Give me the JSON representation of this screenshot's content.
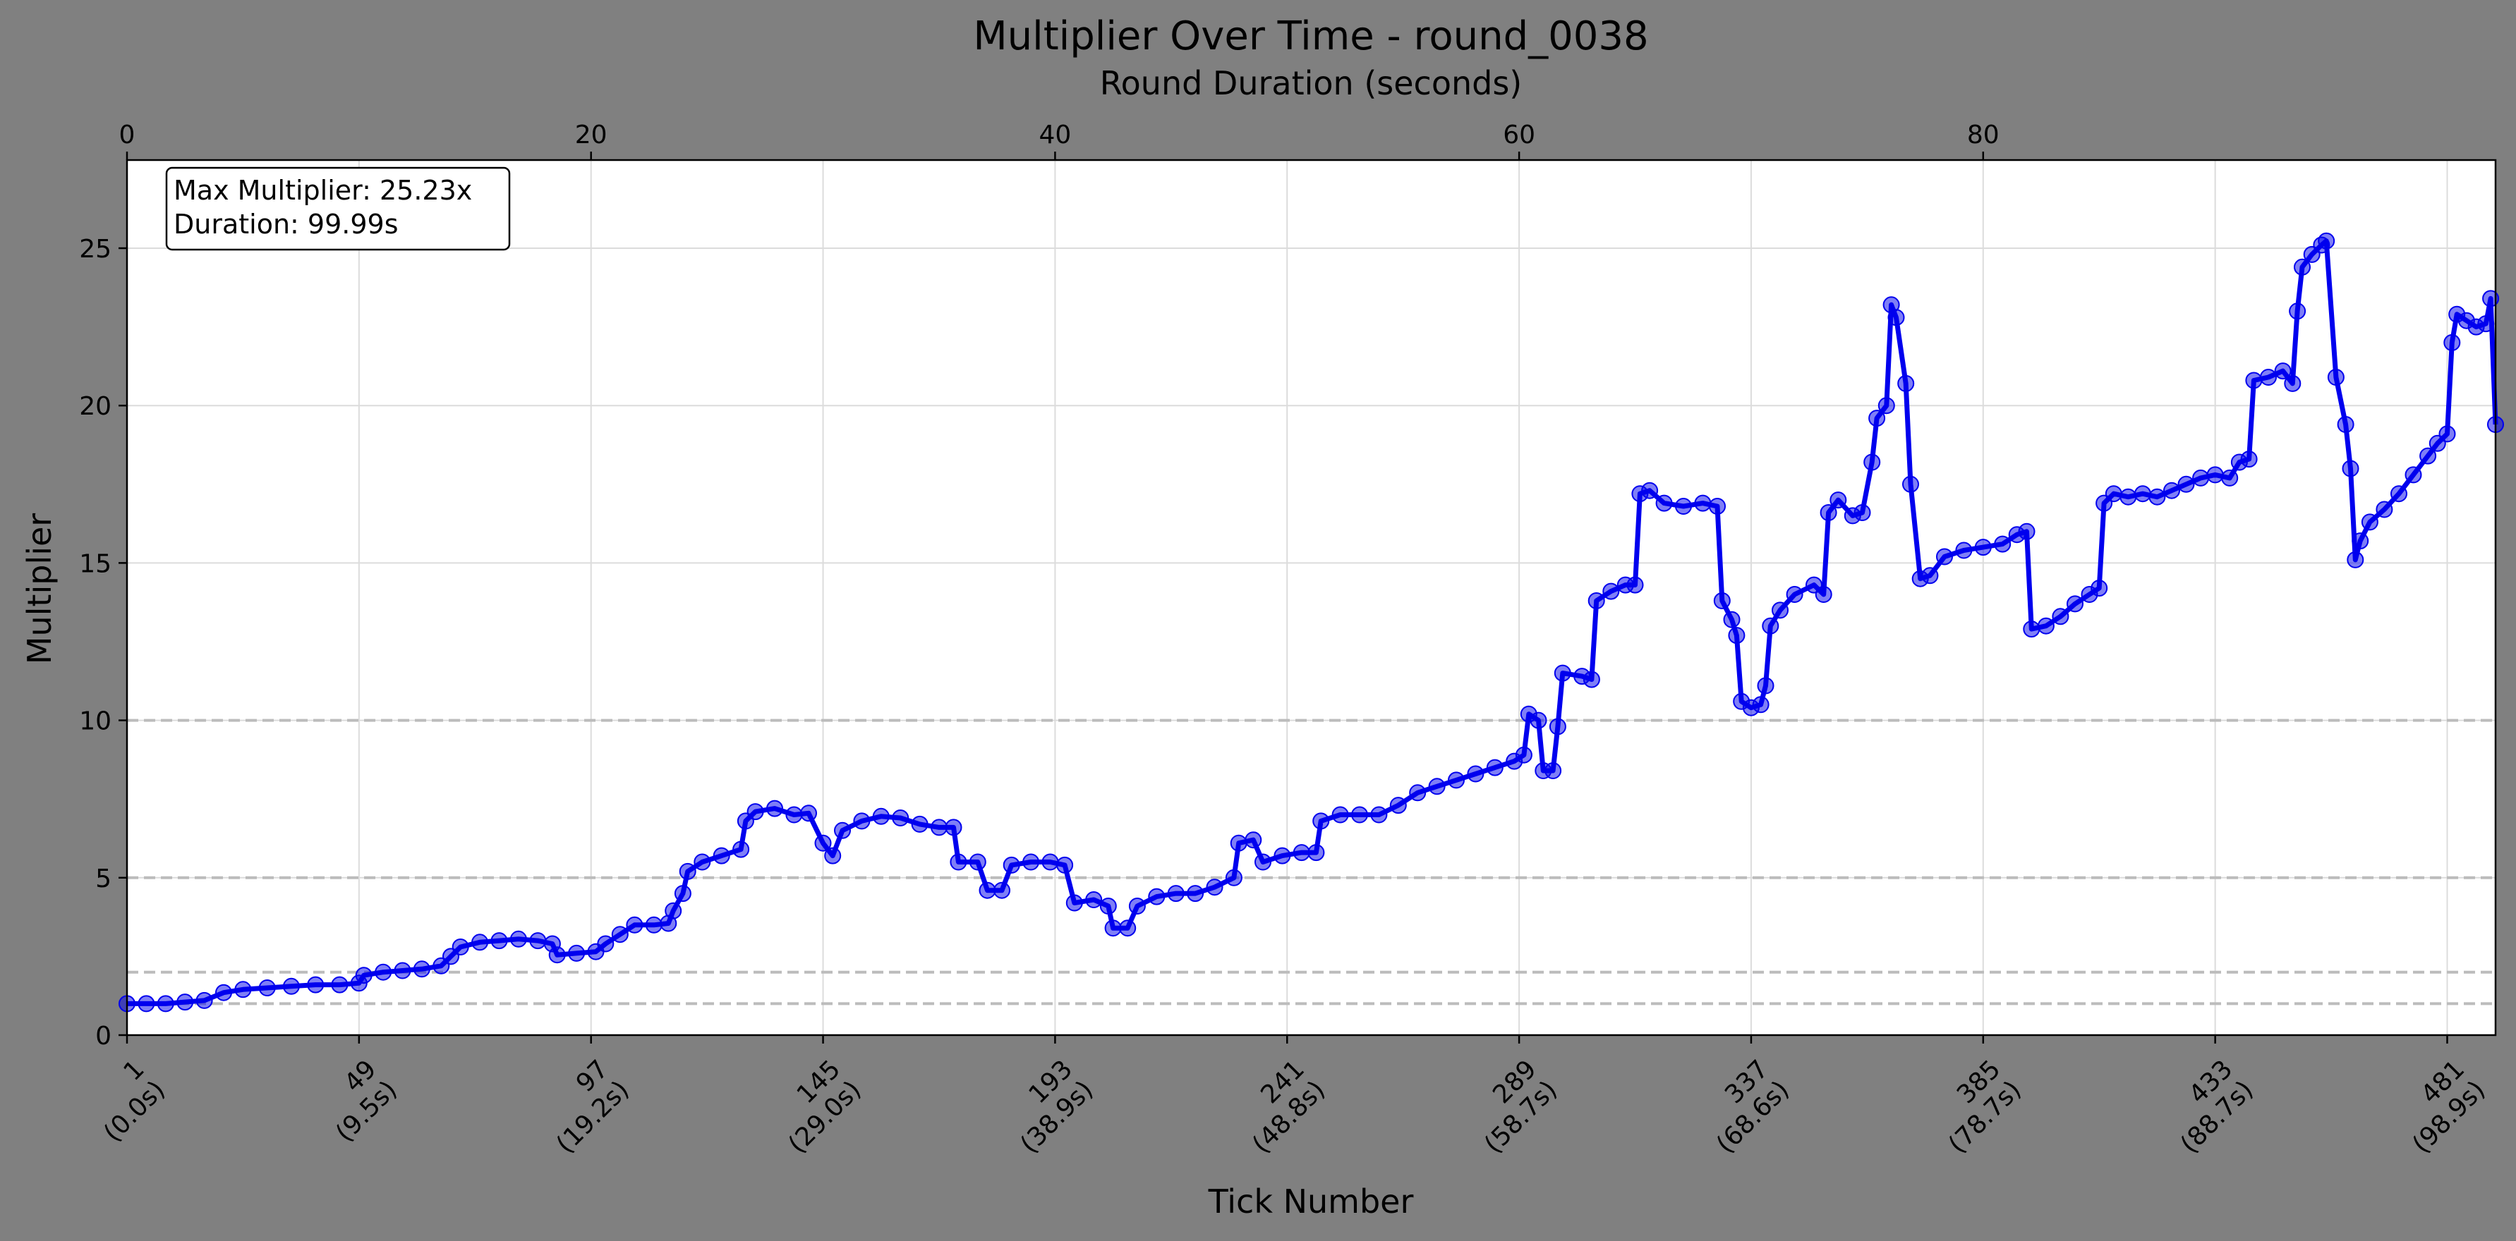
{
  "chart_data": {
    "type": "line",
    "title": "Multiplier Over Time - round_0038",
    "xlabel": "Tick Number",
    "ylabel": "Multiplier",
    "top_xlabel": "Round Duration (seconds)",
    "xlim": [
      1,
      491
    ],
    "ylim": [
      0,
      27.8
    ],
    "yticks": [
      0,
      5,
      10,
      15,
      20,
      25
    ],
    "top_xticks": [
      "0",
      "20",
      "40",
      "60",
      "80"
    ],
    "top_xtick_ticks": [
      1,
      97,
      193,
      289,
      385
    ],
    "xticks": [
      {
        "tick": 1,
        "line1": "1",
        "line2": "(0.0s)"
      },
      {
        "tick": 49,
        "line1": "49",
        "line2": "(9.5s)"
      },
      {
        "tick": 97,
        "line1": "97",
        "line2": "(19.2s)"
      },
      {
        "tick": 145,
        "line1": "145",
        "line2": "(29.0s)"
      },
      {
        "tick": 193,
        "line1": "193",
        "line2": "(38.9s)"
      },
      {
        "tick": 241,
        "line1": "241",
        "line2": "(48.8s)"
      },
      {
        "tick": 289,
        "line1": "289",
        "line2": "(58.7s)"
      },
      {
        "tick": 337,
        "line1": "337",
        "line2": "(68.6s)"
      },
      {
        "tick": 385,
        "line1": "385",
        "line2": "(78.7s)"
      },
      {
        "tick": 433,
        "line1": "433",
        "line2": "(88.7s)"
      },
      {
        "tick": 481,
        "line1": "481",
        "line2": "(98.9s)"
      }
    ],
    "reference_lines": [
      1,
      2,
      5,
      10
    ],
    "grid": true,
    "annotation": {
      "line1": "Max Multiplier: 25.23x",
      "line2": "Duration: 99.99s",
      "placement": "top-left"
    },
    "series": [
      {
        "color": "#0000ee",
        "points": [
          [
            1,
            1.0
          ],
          [
            5,
            1.0
          ],
          [
            9,
            1.0
          ],
          [
            13,
            1.05
          ],
          [
            17,
            1.1
          ],
          [
            21,
            1.35
          ],
          [
            25,
            1.45
          ],
          [
            30,
            1.5
          ],
          [
            35,
            1.55
          ],
          [
            40,
            1.6
          ],
          [
            45,
            1.6
          ],
          [
            49,
            1.65
          ],
          [
            50,
            1.9
          ],
          [
            54,
            2.0
          ],
          [
            58,
            2.05
          ],
          [
            62,
            2.1
          ],
          [
            66,
            2.2
          ],
          [
            68,
            2.5
          ],
          [
            70,
            2.8
          ],
          [
            74,
            2.95
          ],
          [
            78,
            3.0
          ],
          [
            82,
            3.05
          ],
          [
            86,
            3.0
          ],
          [
            89,
            2.9
          ],
          [
            90,
            2.55
          ],
          [
            94,
            2.6
          ],
          [
            98,
            2.65
          ],
          [
            100,
            2.9
          ],
          [
            103,
            3.2
          ],
          [
            106,
            3.5
          ],
          [
            110,
            3.5
          ],
          [
            113,
            3.55
          ],
          [
            114,
            3.95
          ],
          [
            116,
            4.5
          ],
          [
            117,
            5.2
          ],
          [
            120,
            5.5
          ],
          [
            124,
            5.7
          ],
          [
            128,
            5.9
          ],
          [
            129,
            6.8
          ],
          [
            131,
            7.1
          ],
          [
            135,
            7.2
          ],
          [
            139,
            7.0
          ],
          [
            142,
            7.05
          ],
          [
            145,
            6.1
          ],
          [
            147,
            5.7
          ],
          [
            149,
            6.5
          ],
          [
            153,
            6.8
          ],
          [
            157,
            6.95
          ],
          [
            161,
            6.9
          ],
          [
            165,
            6.7
          ],
          [
            169,
            6.6
          ],
          [
            172,
            6.6
          ],
          [
            173,
            5.5
          ],
          [
            177,
            5.5
          ],
          [
            179,
            4.6
          ],
          [
            182,
            4.6
          ],
          [
            184,
            5.4
          ],
          [
            188,
            5.5
          ],
          [
            192,
            5.5
          ],
          [
            195,
            5.4
          ],
          [
            197,
            4.2
          ],
          [
            201,
            4.3
          ],
          [
            204,
            4.1
          ],
          [
            205,
            3.4
          ],
          [
            208,
            3.4
          ],
          [
            210,
            4.1
          ],
          [
            214,
            4.4
          ],
          [
            218,
            4.5
          ],
          [
            222,
            4.5
          ],
          [
            226,
            4.7
          ],
          [
            230,
            5.0
          ],
          [
            231,
            6.1
          ],
          [
            234,
            6.2
          ],
          [
            236,
            5.5
          ],
          [
            240,
            5.7
          ],
          [
            244,
            5.8
          ],
          [
            247,
            5.8
          ],
          [
            248,
            6.8
          ],
          [
            252,
            7.0
          ],
          [
            256,
            7.0
          ],
          [
            260,
            7.0
          ],
          [
            264,
            7.3
          ],
          [
            268,
            7.7
          ],
          [
            272,
            7.9
          ],
          [
            276,
            8.1
          ],
          [
            280,
            8.3
          ],
          [
            284,
            8.5
          ],
          [
            288,
            8.7
          ],
          [
            290,
            8.9
          ],
          [
            291,
            10.2
          ],
          [
            293,
            10.0
          ],
          [
            294,
            8.4
          ],
          [
            296,
            8.4
          ],
          [
            297,
            9.8
          ],
          [
            298,
            11.5
          ],
          [
            302,
            11.4
          ],
          [
            304,
            11.3
          ],
          [
            305,
            13.8
          ],
          [
            308,
            14.1
          ],
          [
            311,
            14.3
          ],
          [
            313,
            14.3
          ],
          [
            314,
            17.2
          ],
          [
            316,
            17.3
          ],
          [
            319,
            16.9
          ],
          [
            323,
            16.8
          ],
          [
            327,
            16.9
          ],
          [
            330,
            16.8
          ],
          [
            331,
            13.8
          ],
          [
            333,
            13.2
          ],
          [
            334,
            12.7
          ],
          [
            335,
            10.6
          ],
          [
            337,
            10.4
          ],
          [
            339,
            10.5
          ],
          [
            340,
            11.1
          ],
          [
            341,
            13.0
          ],
          [
            343,
            13.5
          ],
          [
            346,
            14.0
          ],
          [
            350,
            14.3
          ],
          [
            352,
            14.0
          ],
          [
            353,
            16.6
          ],
          [
            355,
            17.0
          ],
          [
            358,
            16.5
          ],
          [
            360,
            16.6
          ],
          [
            362,
            18.2
          ],
          [
            363,
            19.6
          ],
          [
            365,
            20.0
          ],
          [
            366,
            23.2
          ],
          [
            367,
            22.8
          ],
          [
            369,
            20.7
          ],
          [
            370,
            17.5
          ],
          [
            372,
            14.5
          ],
          [
            374,
            14.6
          ],
          [
            377,
            15.2
          ],
          [
            381,
            15.4
          ],
          [
            385,
            15.5
          ],
          [
            389,
            15.6
          ],
          [
            392,
            15.9
          ],
          [
            394,
            16.0
          ],
          [
            395,
            12.9
          ],
          [
            398,
            13.0
          ],
          [
            401,
            13.3
          ],
          [
            404,
            13.7
          ],
          [
            407,
            14.0
          ],
          [
            409,
            14.2
          ],
          [
            410,
            16.9
          ],
          [
            412,
            17.2
          ],
          [
            415,
            17.1
          ],
          [
            418,
            17.2
          ],
          [
            421,
            17.1
          ],
          [
            424,
            17.3
          ],
          [
            427,
            17.5
          ],
          [
            430,
            17.7
          ],
          [
            433,
            17.8
          ],
          [
            436,
            17.7
          ],
          [
            438,
            18.2
          ],
          [
            440,
            18.3
          ],
          [
            441,
            20.8
          ],
          [
            444,
            20.9
          ],
          [
            447,
            21.1
          ],
          [
            449,
            20.7
          ],
          [
            450,
            23.0
          ],
          [
            451,
            24.4
          ],
          [
            453,
            24.8
          ],
          [
            455,
            25.1
          ],
          [
            456,
            25.23
          ],
          [
            458,
            20.9
          ],
          [
            460,
            19.4
          ],
          [
            461,
            18.0
          ],
          [
            462,
            15.1
          ],
          [
            463,
            15.7
          ],
          [
            465,
            16.3
          ],
          [
            468,
            16.7
          ],
          [
            471,
            17.2
          ],
          [
            474,
            17.8
          ],
          [
            477,
            18.4
          ],
          [
            479,
            18.8
          ],
          [
            481,
            19.1
          ],
          [
            482,
            22.0
          ],
          [
            483,
            22.9
          ],
          [
            485,
            22.7
          ],
          [
            487,
            22.5
          ],
          [
            489,
            22.6
          ],
          [
            490,
            23.4
          ],
          [
            491,
            19.4
          ]
        ]
      }
    ]
  }
}
